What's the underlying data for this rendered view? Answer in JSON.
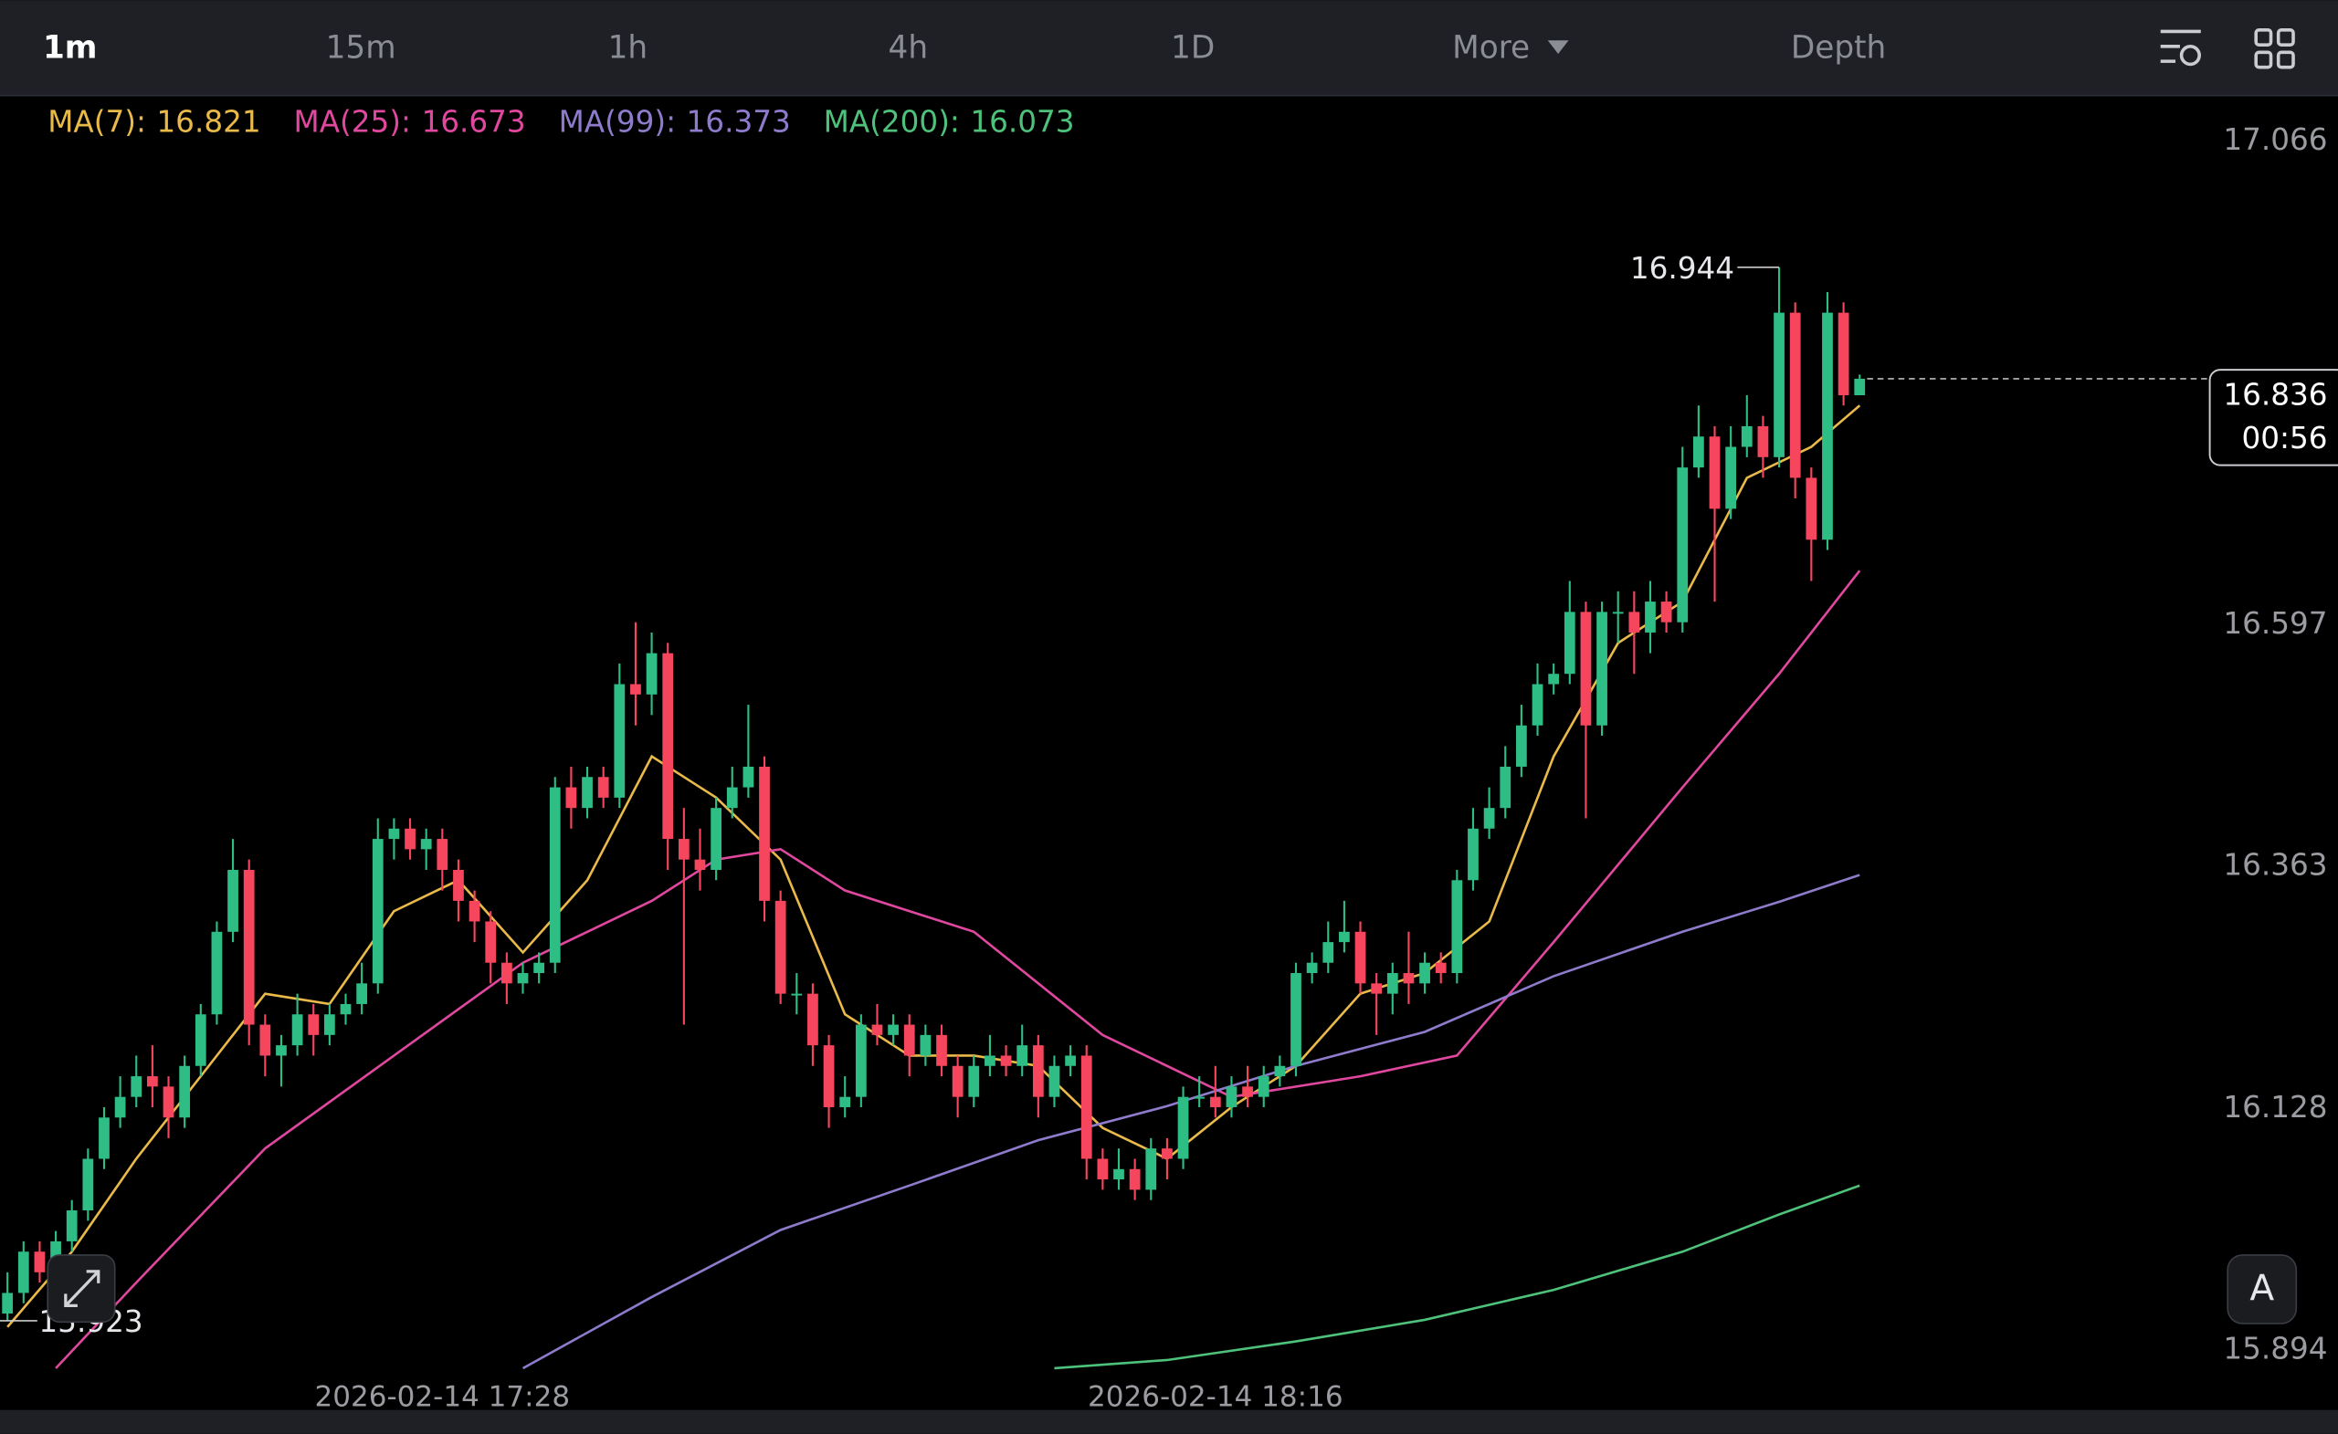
{
  "tabs": [
    "1m",
    "15m",
    "1h",
    "4h",
    "1D",
    "More",
    "Depth"
  ],
  "chart_data": {
    "type": "candlestick",
    "up_color": "#2ebd85",
    "down_color": "#f6465d",
    "xlim": [
      -0.463,
      144.7
    ],
    "ylim": [
      15.838,
      17.109
    ],
    "yticks": [
      17.066,
      16.597,
      16.363,
      16.128,
      15.894
    ],
    "xticks": [
      {
        "value": 27,
        "label": "2026-02-14 17:28"
      },
      {
        "value": 75,
        "label": "2026-02-14 18:16"
      }
    ],
    "countdown": "00:56",
    "open": [
      15.93,
      15.95,
      15.99,
      15.97,
      16.0,
      16.03,
      16.08,
      16.12,
      16.14,
      16.16,
      16.15,
      16.12,
      16.17,
      16.22,
      16.3,
      16.36,
      16.21,
      16.18,
      16.19,
      16.22,
      16.2,
      16.22,
      16.23,
      16.25,
      16.39,
      16.4,
      16.38,
      16.39,
      16.36,
      16.33,
      16.31,
      16.27,
      16.25,
      16.26,
      16.27,
      16.44,
      16.42,
      16.45,
      16.43,
      16.54,
      16.53,
      16.57,
      16.39,
      16.37,
      16.36,
      16.42,
      16.44,
      16.46,
      16.33,
      16.24,
      16.24,
      16.19,
      16.13,
      16.14,
      16.21,
      16.2,
      16.21,
      16.18,
      16.2,
      16.17,
      16.14,
      16.17,
      16.18,
      16.17,
      16.19,
      16.14,
      16.17,
      16.18,
      16.08,
      16.06,
      16.07,
      16.05,
      16.09,
      16.08,
      16.14,
      16.14,
      16.13,
      16.15,
      16.14,
      16.16,
      16.17,
      16.26,
      16.27,
      16.29,
      16.3,
      16.25,
      16.24,
      16.26,
      16.25,
      16.27,
      16.26,
      16.35,
      16.4,
      16.42,
      16.46,
      16.5,
      16.54,
      16.55,
      16.61,
      16.5,
      16.61,
      16.61,
      16.59,
      16.62,
      16.6,
      16.75,
      16.78,
      16.71,
      16.77,
      16.79,
      16.76,
      16.9,
      16.74,
      16.68,
      16.9,
      16.82
    ],
    "high": [
      15.97,
      16.0,
      16.0,
      16.01,
      16.04,
      16.09,
      16.13,
      16.16,
      16.18,
      16.19,
      16.16,
      16.18,
      16.23,
      16.31,
      16.39,
      16.37,
      16.22,
      16.2,
      16.24,
      16.23,
      16.23,
      16.24,
      16.27,
      16.41,
      16.41,
      16.41,
      16.4,
      16.4,
      16.37,
      16.34,
      16.32,
      16.28,
      16.27,
      16.28,
      16.45,
      16.46,
      16.46,
      16.46,
      16.56,
      16.6,
      16.59,
      16.58,
      16.42,
      16.4,
      16.43,
      16.46,
      16.52,
      16.47,
      16.34,
      16.26,
      16.25,
      16.2,
      16.16,
      16.22,
      16.23,
      16.22,
      16.22,
      16.21,
      16.21,
      16.18,
      16.18,
      16.2,
      16.19,
      16.21,
      16.2,
      16.18,
      16.19,
      16.19,
      16.09,
      16.09,
      16.08,
      16.1,
      16.1,
      16.15,
      16.16,
      16.17,
      16.16,
      16.17,
      16.17,
      16.18,
      16.27,
      16.28,
      16.31,
      16.33,
      16.31,
      16.26,
      16.27,
      16.3,
      16.28,
      16.28,
      16.36,
      16.42,
      16.44,
      16.48,
      16.52,
      16.56,
      16.56,
      16.64,
      16.62,
      16.62,
      16.63,
      16.63,
      16.64,
      16.63,
      16.77,
      16.81,
      16.79,
      16.79,
      16.82,
      16.8,
      16.944,
      16.91,
      16.75,
      16.92,
      16.91,
      16.84
    ],
    "low": [
      15.923,
      15.94,
      15.96,
      15.96,
      15.99,
      16.02,
      16.07,
      16.11,
      16.13,
      16.13,
      16.1,
      16.11,
      16.16,
      16.21,
      16.29,
      16.19,
      16.16,
      16.15,
      16.18,
      16.18,
      16.19,
      16.21,
      16.22,
      16.24,
      16.37,
      16.37,
      16.36,
      16.34,
      16.31,
      16.29,
      16.25,
      16.23,
      16.24,
      16.25,
      16.26,
      16.4,
      16.41,
      16.42,
      16.42,
      16.5,
      16.51,
      16.36,
      16.21,
      16.34,
      16.35,
      16.41,
      16.43,
      16.31,
      16.23,
      16.22,
      16.17,
      16.11,
      16.12,
      16.13,
      16.19,
      16.19,
      16.16,
      16.17,
      16.16,
      16.12,
      16.13,
      16.16,
      16.16,
      16.16,
      16.12,
      16.13,
      16.16,
      16.06,
      16.05,
      16.05,
      16.04,
      16.04,
      16.06,
      16.07,
      16.13,
      16.12,
      16.12,
      16.13,
      16.13,
      16.15,
      16.16,
      16.25,
      16.26,
      16.28,
      16.24,
      16.2,
      16.22,
      16.23,
      16.24,
      16.25,
      16.25,
      16.34,
      16.39,
      16.41,
      16.45,
      16.49,
      16.53,
      16.54,
      16.41,
      16.49,
      16.58,
      16.55,
      16.57,
      16.59,
      16.59,
      16.74,
      16.62,
      16.7,
      16.76,
      16.74,
      16.75,
      16.72,
      16.64,
      16.67,
      16.81,
      16.82
    ],
    "close": [
      15.95,
      15.99,
      15.97,
      16.0,
      16.03,
      16.08,
      16.12,
      16.14,
      16.16,
      16.15,
      16.12,
      16.17,
      16.22,
      16.3,
      16.36,
      16.21,
      16.18,
      16.19,
      16.22,
      16.2,
      16.22,
      16.23,
      16.25,
      16.39,
      16.4,
      16.38,
      16.39,
      16.36,
      16.33,
      16.31,
      16.27,
      16.25,
      16.26,
      16.27,
      16.44,
      16.42,
      16.45,
      16.43,
      16.54,
      16.53,
      16.57,
      16.39,
      16.37,
      16.36,
      16.42,
      16.44,
      16.46,
      16.33,
      16.24,
      16.24,
      16.19,
      16.13,
      16.14,
      16.21,
      16.2,
      16.21,
      16.18,
      16.2,
      16.17,
      16.14,
      16.17,
      16.18,
      16.17,
      16.19,
      16.14,
      16.17,
      16.18,
      16.08,
      16.06,
      16.07,
      16.05,
      16.09,
      16.08,
      16.14,
      16.14,
      16.13,
      16.15,
      16.14,
      16.16,
      16.17,
      16.26,
      16.27,
      16.29,
      16.3,
      16.25,
      16.24,
      16.26,
      16.25,
      16.27,
      16.26,
      16.35,
      16.4,
      16.42,
      16.46,
      16.5,
      16.54,
      16.55,
      16.61,
      16.5,
      16.61,
      16.61,
      16.59,
      16.62,
      16.6,
      16.75,
      16.78,
      16.71,
      16.77,
      16.79,
      16.76,
      16.9,
      16.74,
      16.68,
      16.9,
      16.82,
      16.836
    ],
    "series": [
      {
        "name": "MA(7):",
        "last_value": 16.821,
        "color": "#e9b949",
        "x": [
          0,
          4,
          8,
          12,
          16,
          20,
          24,
          28,
          32,
          36,
          40,
          44,
          48,
          52,
          56,
          60,
          64,
          68,
          72,
          76,
          80,
          84,
          88,
          92,
          96,
          100,
          104,
          108,
          112,
          115
        ],
        "values": [
          15.917,
          15.99,
          16.08,
          16.16,
          16.24,
          16.23,
          16.32,
          16.35,
          16.28,
          16.35,
          16.47,
          16.43,
          16.37,
          16.22,
          16.18,
          16.18,
          16.17,
          16.11,
          16.08,
          16.13,
          16.17,
          16.24,
          16.26,
          16.31,
          16.47,
          16.58,
          16.62,
          16.74,
          16.77,
          16.81
        ]
      },
      {
        "name": "MA(25):",
        "last_value": 16.673,
        "color": "#e0479e",
        "x": [
          3,
          8,
          16,
          24,
          32,
          40,
          44,
          48,
          52,
          60,
          68,
          76,
          84,
          90,
          96,
          104,
          110,
          115
        ],
        "values": [
          15.877,
          15.96,
          16.09,
          16.18,
          16.27,
          16.33,
          16.37,
          16.38,
          16.34,
          16.3,
          16.2,
          16.14,
          16.16,
          16.18,
          16.29,
          16.44,
          16.55,
          16.65
        ]
      },
      {
        "name": "MA(99):",
        "last_value": 16.373,
        "color": "#8f7bcc",
        "x": [
          32,
          40,
          48,
          56,
          64,
          72,
          80,
          88,
          96,
          104,
          110,
          115
        ],
        "values": [
          15.877,
          15.946,
          16.011,
          16.054,
          16.098,
          16.131,
          16.17,
          16.203,
          16.257,
          16.3,
          16.329,
          16.355
        ]
      },
      {
        "name": "MA(200):",
        "last_value": 16.073,
        "color": "#4ec27a",
        "x": [
          65,
          72,
          80,
          88,
          96,
          104,
          110,
          115
        ],
        "values": [
          15.877,
          15.885,
          15.903,
          15.924,
          15.953,
          15.99,
          16.026,
          16.054
        ]
      }
    ]
  }
}
